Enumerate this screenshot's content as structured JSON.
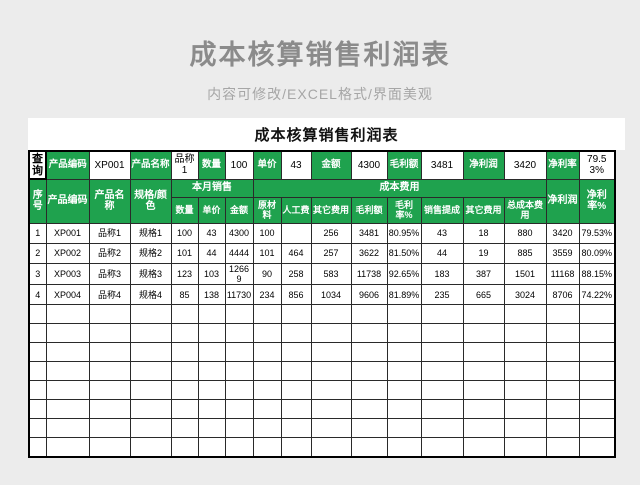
{
  "colors": {
    "accent_green": "#1fa24e",
    "page_bg": "#ececec",
    "hero_text": "#8b8b8b"
  },
  "hero": {
    "title": "成本核算销售利润表",
    "subtitle": "内容可修改/EXCEL格式/界面美观"
  },
  "sheet": {
    "title": "成本核算销售利润表",
    "query": {
      "button_label": "查询",
      "pairs": [
        {
          "label": "产品编码",
          "value": "XP001"
        },
        {
          "label": "产品名称",
          "value": "品称1"
        },
        {
          "label": "数量",
          "value": "100"
        },
        {
          "label": "单价",
          "value": "43"
        },
        {
          "label": "金额",
          "value": "4300"
        },
        {
          "label": "毛利额",
          "value": "3481"
        },
        {
          "label": "净利润",
          "value": "3420"
        },
        {
          "label": "净利率",
          "value": "79.53%"
        }
      ]
    },
    "headers": {
      "left": [
        "序号",
        "产品编码",
        "产品名称",
        "规格/颜色"
      ],
      "group_sales": "本月销售",
      "group_cost": "成本费用",
      "sales_cols": [
        "数量",
        "单价",
        "金额"
      ],
      "cost_cols": [
        "原材料",
        "人工费",
        "其它费用",
        "毛利额",
        "毛利率%",
        "销售提成",
        "其它费用",
        "总成本费用"
      ],
      "right": [
        "净利润",
        "净利率%"
      ]
    },
    "rows": [
      [
        "1",
        "XP001",
        "品称1",
        "规格1",
        "100",
        "43",
        "4300",
        "100",
        "",
        "256",
        "3481",
        "80.95%",
        "43",
        "18",
        "880",
        "3420",
        "79.53%"
      ],
      [
        "2",
        "XP002",
        "品称2",
        "规格2",
        "101",
        "44",
        "4444",
        "101",
        "464",
        "257",
        "3622",
        "81.50%",
        "44",
        "19",
        "885",
        "3559",
        "80.09%"
      ],
      [
        "3",
        "XP003",
        "品称3",
        "规格3",
        "123",
        "103",
        "12669",
        "90",
        "258",
        "583",
        "11738",
        "92.65%",
        "183",
        "387",
        "1501",
        "11168",
        "88.15%"
      ],
      [
        "4",
        "XP004",
        "品称4",
        "规格4",
        "85",
        "138",
        "11730",
        "234",
        "856",
        "1034",
        "9606",
        "81.89%",
        "235",
        "665",
        "3024",
        "8706",
        "74.22%"
      ]
    ],
    "empty_row_count": 8
  }
}
